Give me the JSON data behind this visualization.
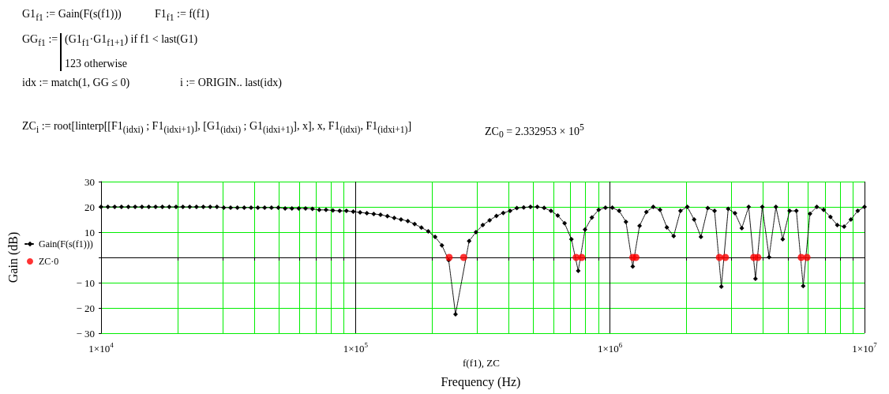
{
  "chart_data": {
    "type": "line",
    "xlabel": "Frequency (Hz)",
    "ylabel": "Gain (dB)",
    "annotations": [
      "G1$_{f1}$ := Gain(F(s(f1)))",
      "F1$_{f1}$ := f(f1)",
      "GG$_{f1}$ :=",
      "(G1$_{f1}$·G1$_{f1+1}$)  if  f1 < last(G1)",
      "123  otherwise",
      "idx := match(1, GG ≤ 0)",
      "i := ORIGIN.. last(idx)",
      "ZC$_{i}$ := root[linterp[[F1$_{(idxi)}$ ; F1$_{(idxi+1)}$], [G1$_{(idxi)}$ ; G1$_{(idxi+1)}$], x], x, F1$_{(idxi)}$, F1$_{(idxi+1)}$]",
      "ZC$_{0}$ = 2.332953 × 10$^{5}$",
      "f(f1), ZC"
    ],
    "log": "x",
    "grid": true,
    "legend": "left",
    "xlim": [
      10000,
      10000000
    ],
    "xticks": [
      {
        "value": 10000,
        "label": "1×10$^{4}$"
      },
      {
        "value": 20000,
        "label": null
      },
      {
        "value": 30000,
        "label": null
      },
      {
        "value": 40000,
        "label": null
      },
      {
        "value": 50000,
        "label": null
      },
      {
        "value": 60000,
        "label": null
      },
      {
        "value": 70000,
        "label": null
      },
      {
        "value": 80000,
        "label": null
      },
      {
        "value": 90000,
        "label": null
      },
      {
        "value": 100000,
        "label": "1×10$^{5}$"
      },
      {
        "value": 200000,
        "label": null
      },
      {
        "value": 300000,
        "label": null
      },
      {
        "value": 400000,
        "label": null
      },
      {
        "value": 500000,
        "label": null
      },
      {
        "value": 600000,
        "label": null
      },
      {
        "value": 700000,
        "label": null
      },
      {
        "value": 800000,
        "label": null
      },
      {
        "value": 900000,
        "label": null
      },
      {
        "value": 1000000,
        "label": "1×10$^{6}$"
      },
      {
        "value": 2000000,
        "label": null
      },
      {
        "value": 3000000,
        "label": null
      },
      {
        "value": 4000000,
        "label": null
      },
      {
        "value": 5000000,
        "label": null
      },
      {
        "value": 6000000,
        "label": null
      },
      {
        "value": 7000000,
        "label": null
      },
      {
        "value": 8000000,
        "label": null
      },
      {
        "value": 9000000,
        "label": null
      },
      {
        "value": 10000000,
        "label": "1×10$^{7}$"
      }
    ],
    "ylim": [
      -30,
      30
    ],
    "yticks": [
      {
        "value": -30,
        "label": "− 30"
      },
      {
        "value": -20,
        "label": "− 20"
      },
      {
        "value": -10,
        "label": "− 10"
      },
      {
        "value": 0,
        "label": null
      },
      10,
      20,
      30
    ],
    "series": [
      {
        "name": "Gain(F(s(f1)))",
        "color": "#000000",
        "marker": "diamond",
        "line_style": "dotted",
        "x": [
          10000,
          10640,
          11310,
          12030,
          12800,
          13610,
          14480,
          15400,
          16380,
          17420,
          18530,
          19710,
          20970,
          22300,
          23710,
          25220,
          26830,
          28540,
          30350,
          32280,
          34340,
          36520,
          38850,
          41320,
          43940,
          46740,
          49710,
          52880,
          56230,
          59820,
          63620,
          67670,
          71970,
          76550,
          81420,
          86600,
          92110,
          97970,
          104200,
          110800,
          117900,
          125400,
          133400,
          141900,
          150900,
          160500,
          170700,
          181500,
          193100,
          205400,
          218400,
          232300,
          247100,
          262800,
          279500,
          297300,
          316200,
          336300,
          357700,
          380500,
          404700,
          430400,
          457800,
          487000,
          517900,
          550900,
          586000,
          623200,
          662900,
          705100,
          749900,
          797600,
          848300,
          902300,
          959700,
          1021000,
          1086000,
          1155000,
          1228000,
          1306000,
          1389000,
          1478000,
          1572000,
          1672000,
          1778000,
          1891000,
          2012000,
          2140000,
          2276000,
          2421000,
          2575000,
          2738000,
          2913000,
          3098000,
          3295000,
          3505000,
          3728000,
          3965000,
          4217000,
          4486000,
          4771000,
          5075000,
          5398000,
          5741000,
          6105000,
          6494000,
          6907000,
          7347000,
          7814000,
          8311000,
          8840000,
          9402000,
          10000000
        ],
        "values": [
          20,
          20,
          20,
          20,
          20,
          20,
          20,
          20,
          20,
          20,
          20,
          20,
          20,
          20,
          20,
          20,
          20,
          20,
          19.7,
          19.7,
          19.7,
          19.7,
          19.7,
          19.7,
          19.7,
          19.7,
          19.7,
          19.4,
          19.4,
          19.4,
          19.4,
          19.2,
          18.8,
          18.8,
          18.6,
          18.4,
          18.4,
          18.1,
          17.8,
          17.5,
          17.2,
          16.9,
          16.3,
          15.6,
          15.0,
          14.4,
          13.2,
          11.8,
          10.3,
          8.1,
          4.8,
          -1.1,
          -22.5,
          null,
          6.5,
          10.0,
          12.8,
          14.7,
          16.4,
          17.6,
          18.4,
          19.5,
          19.8,
          20,
          20,
          19.6,
          18.4,
          16.6,
          13.5,
          7.2,
          -5.3,
          11.0,
          15.8,
          18.8,
          19.7,
          19.7,
          18.4,
          14.1,
          -3.6,
          12.5,
          18.0,
          20,
          18.8,
          11.9,
          8.4,
          18.4,
          20,
          15.0,
          8.1,
          19.5,
          18.4,
          -11.6,
          19.2,
          17.5,
          11.6,
          20,
          -8.4,
          20,
          0.1,
          20,
          7.2,
          18.4,
          18.4,
          -11.3,
          17.3,
          20,
          18.8,
          16.0,
          12.8,
          12.2,
          15.0,
          18.4,
          20
        ]
      },
      {
        "name": "ZC·0",
        "type": "scatter",
        "color": "#ff0000",
        "marker": "circle",
        "x": [
          233295.3,
          266000,
          736000,
          774000,
          1229000,
          1264000,
          2690000,
          2840000,
          3670000,
          3810000,
          5640000,
          5940000
        ],
        "values": [
          0,
          0,
          0,
          0,
          0,
          0,
          0,
          0,
          0,
          0,
          0,
          0
        ]
      }
    ]
  }
}
